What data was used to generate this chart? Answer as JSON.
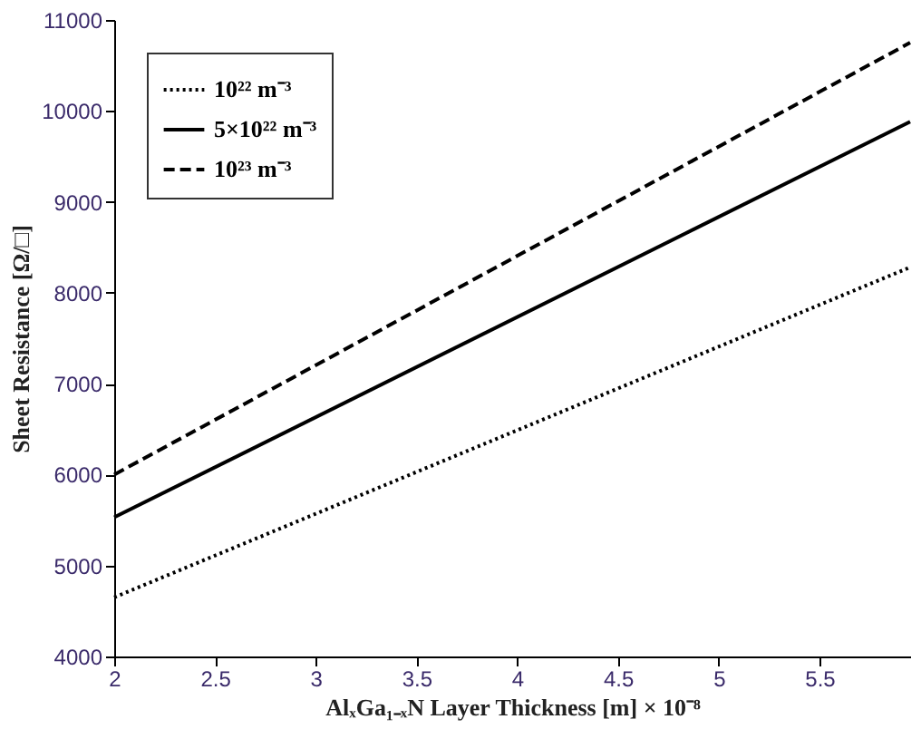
{
  "chart_data": {
    "type": "line",
    "xlabel": "AlₓGa₁₋ₓN Layer Thickness [m] × 10⁻⁸",
    "ylabel": "Sheet Resistance [Ω/□]",
    "x": [
      2,
      5.95
    ],
    "series": [
      {
        "name": "10²² m⁻³",
        "color": "#000000",
        "line_style": "dotted",
        "values": [
          4650,
          8280
        ]
      },
      {
        "name": "5×10²² m⁻³",
        "color": "#000000",
        "line_style": "solid",
        "values": [
          5530,
          9880
        ]
      },
      {
        "name": "10²³ m⁻³",
        "color": "#000000",
        "line_style": "dashed",
        "values": [
          6000,
          10750
        ]
      }
    ],
    "xlim": [
      2,
      5.95
    ],
    "xticks": [
      2,
      2.5,
      3,
      3.5,
      4,
      4.5,
      5,
      5.5
    ],
    "ylim": [
      4000,
      11000
    ],
    "yticks": [
      4000,
      5000,
      6000,
      7000,
      8000,
      9000,
      10000,
      11000
    ],
    "grid": false,
    "legend": "top left",
    "marker": "none"
  }
}
